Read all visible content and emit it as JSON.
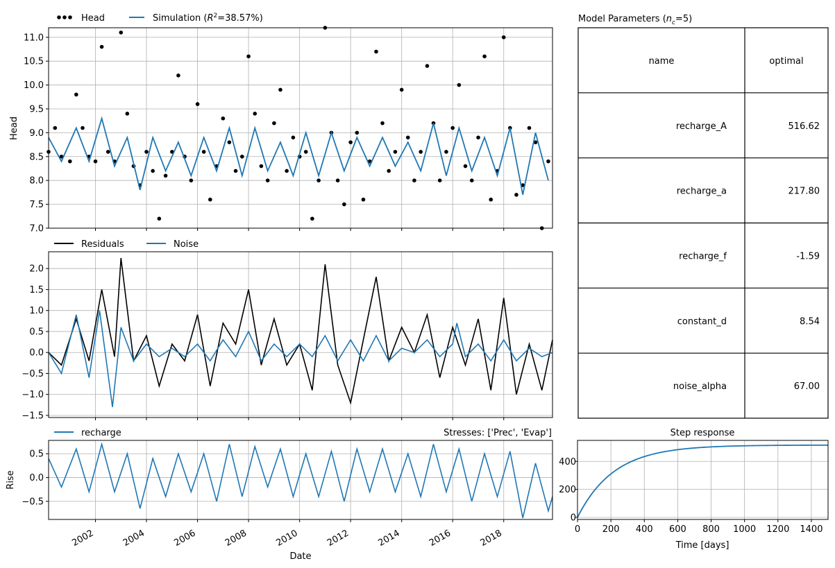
{
  "chart_data": [
    {
      "id": "head",
      "type": "line",
      "ylabel": "Head",
      "ylim": [
        7.0,
        11.2
      ],
      "yticks": [
        "7.0",
        "7.5",
        "8.0",
        "8.5",
        "9.0",
        "9.5",
        "10.0",
        "10.5",
        "11.0"
      ],
      "xlim": [
        "2000-03-01",
        "2019-11-30"
      ],
      "grid": true,
      "legend": {
        "placement": "top-left",
        "entries": [
          "Head",
          "Simulation (R²=38.57%)"
        ]
      },
      "series": [
        {
          "name": "Head",
          "kind": "scatter-dots",
          "color": "#000000",
          "x": [
            "2000-03-01",
            "2000-06-01",
            "2000-09-01",
            "2001-01-01",
            "2001-04-01",
            "2001-07-01",
            "2001-10-01",
            "2002-01-01",
            "2002-04-01",
            "2002-07-01",
            "2002-10-01",
            "2003-01-01",
            "2003-04-01",
            "2003-07-01",
            "2003-10-01",
            "2004-01-01",
            "2004-04-01",
            "2004-07-01",
            "2004-10-01",
            "2005-01-01",
            "2005-04-01",
            "2005-07-01",
            "2005-10-01",
            "2006-01-01",
            "2006-04-01",
            "2006-07-01",
            "2006-10-01",
            "2007-01-01",
            "2007-04-01",
            "2007-07-01",
            "2007-10-01",
            "2008-01-01",
            "2008-04-01",
            "2008-07-01",
            "2008-10-01",
            "2009-01-01",
            "2009-04-01",
            "2009-07-01",
            "2009-10-01",
            "2010-01-01",
            "2010-04-01",
            "2010-07-01",
            "2010-10-01",
            "2011-01-01",
            "2011-04-01",
            "2011-07-01",
            "2011-10-01",
            "2012-01-01",
            "2012-04-01",
            "2012-07-01",
            "2012-10-01",
            "2013-01-01",
            "2013-04-01",
            "2013-07-01",
            "2013-10-01",
            "2014-01-01",
            "2014-04-01",
            "2014-07-01",
            "2014-10-01",
            "2015-01-01",
            "2015-04-01",
            "2015-07-01",
            "2015-10-01",
            "2016-01-01",
            "2016-04-01",
            "2016-07-01",
            "2016-10-01",
            "2017-01-01",
            "2017-04-01",
            "2017-07-01",
            "2017-10-01",
            "2018-01-01",
            "2018-04-01",
            "2018-07-01",
            "2018-10-01",
            "2019-01-01",
            "2019-04-01",
            "2019-07-01",
            "2019-10-01"
          ],
          "y": [
            8.6,
            9.1,
            8.5,
            8.4,
            9.8,
            9.1,
            8.5,
            8.4,
            10.8,
            8.6,
            8.4,
            11.1,
            9.4,
            8.3,
            7.9,
            8.6,
            8.2,
            7.2,
            8.1,
            8.6,
            10.2,
            8.5,
            8.0,
            9.6,
            8.6,
            7.6,
            8.3,
            9.3,
            8.8,
            8.2,
            8.5,
            10.6,
            9.4,
            8.3,
            8.0,
            9.2,
            9.9,
            8.2,
            8.9,
            8.5,
            8.6,
            7.2,
            8.0,
            11.2,
            9.0,
            8.0,
            7.5,
            8.8,
            9.0,
            7.6,
            8.4,
            10.7,
            9.2,
            8.2,
            8.6,
            9.9,
            8.9,
            8.0,
            8.6,
            10.4,
            9.2,
            8.0,
            8.6,
            9.1,
            10.0,
            8.3,
            8.0,
            8.9,
            10.6,
            7.6,
            8.2,
            11.0,
            9.1,
            7.7,
            7.9,
            9.1,
            8.8,
            7.0,
            8.4
          ]
        },
        {
          "name": "Simulation (R²=38.57%)",
          "kind": "line",
          "color": "#1f77b4",
          "x": [
            "2000-03-01",
            "2000-09-01",
            "2001-04-01",
            "2001-10-01",
            "2002-04-01",
            "2002-10-01",
            "2003-04-01",
            "2003-10-01",
            "2004-04-01",
            "2004-10-01",
            "2005-04-01",
            "2005-10-01",
            "2006-04-01",
            "2006-10-01",
            "2007-04-01",
            "2007-10-01",
            "2008-04-01",
            "2008-10-01",
            "2009-04-01",
            "2009-10-01",
            "2010-04-01",
            "2010-10-01",
            "2011-04-01",
            "2011-10-01",
            "2012-04-01",
            "2012-10-01",
            "2013-04-01",
            "2013-10-01",
            "2014-04-01",
            "2014-10-01",
            "2015-04-01",
            "2015-10-01",
            "2016-04-01",
            "2016-10-01",
            "2017-04-01",
            "2017-10-01",
            "2018-04-01",
            "2018-10-01",
            "2019-04-01",
            "2019-10-01"
          ],
          "y": [
            8.9,
            8.4,
            9.1,
            8.4,
            9.3,
            8.3,
            8.9,
            7.8,
            8.9,
            8.2,
            8.8,
            8.1,
            8.9,
            8.2,
            9.1,
            8.1,
            9.1,
            8.2,
            8.8,
            8.1,
            9.0,
            8.1,
            9.0,
            8.2,
            8.9,
            8.3,
            8.9,
            8.3,
            8.8,
            8.2,
            9.2,
            8.1,
            9.1,
            8.2,
            8.9,
            8.1,
            9.1,
            7.7,
            9.0,
            8.0
          ]
        }
      ]
    },
    {
      "id": "residuals",
      "type": "line",
      "ylabel": "",
      "ylim": [
        -1.55,
        2.4
      ],
      "yticks": [
        "−1.5",
        "−1.0",
        "−0.5",
        "0.0",
        "0.5",
        "1.0",
        "1.5",
        "2.0"
      ],
      "xlim": [
        "2000-03-01",
        "2019-11-30"
      ],
      "grid": true,
      "legend": {
        "placement": "top-left",
        "entries": [
          "Residuals",
          "Noise"
        ]
      },
      "series": [
        {
          "name": "Residuals",
          "color": "#000000",
          "x": [
            "2000-03-01",
            "2000-09-01",
            "2001-04-01",
            "2001-10-01",
            "2002-04-01",
            "2002-10-01",
            "2003-01-01",
            "2003-07-01",
            "2004-01-01",
            "2004-07-01",
            "2005-01-01",
            "2005-07-01",
            "2006-01-01",
            "2006-07-01",
            "2007-01-01",
            "2007-07-01",
            "2008-01-01",
            "2008-07-01",
            "2009-01-01",
            "2009-07-01",
            "2010-01-01",
            "2010-07-01",
            "2011-01-01",
            "2011-07-01",
            "2012-01-01",
            "2012-07-01",
            "2013-01-01",
            "2013-07-01",
            "2014-01-01",
            "2014-07-01",
            "2015-01-01",
            "2015-07-01",
            "2016-01-01",
            "2016-07-01",
            "2017-01-01",
            "2017-07-01",
            "2018-01-01",
            "2018-07-01",
            "2019-01-01",
            "2019-07-01",
            "2019-11-30"
          ],
          "y": [
            0.0,
            -0.3,
            0.8,
            -0.2,
            1.5,
            -0.1,
            2.25,
            -0.2,
            0.4,
            -0.8,
            0.2,
            -0.2,
            0.9,
            -0.8,
            0.7,
            0.2,
            1.5,
            -0.3,
            0.8,
            -0.3,
            0.2,
            -0.9,
            2.1,
            -0.3,
            -1.2,
            0.3,
            1.8,
            -0.2,
            0.6,
            0.0,
            0.9,
            -0.6,
            0.6,
            -0.3,
            0.8,
            -0.9,
            1.3,
            -1.0,
            0.2,
            -0.9,
            0.3
          ]
        },
        {
          "name": "Noise",
          "color": "#1f77b4",
          "x": [
            "2000-03-01",
            "2000-09-01",
            "2001-04-01",
            "2001-10-01",
            "2002-03-01",
            "2002-09-01",
            "2003-01-01",
            "2003-07-01",
            "2004-01-01",
            "2004-07-01",
            "2005-01-01",
            "2005-07-01",
            "2006-01-01",
            "2006-07-01",
            "2007-01-01",
            "2007-07-01",
            "2008-01-01",
            "2008-07-01",
            "2009-01-01",
            "2009-07-01",
            "2010-01-01",
            "2010-07-01",
            "2011-01-01",
            "2011-07-01",
            "2012-01-01",
            "2012-07-01",
            "2013-01-01",
            "2013-07-01",
            "2014-01-01",
            "2014-07-01",
            "2015-01-01",
            "2015-07-01",
            "2016-01-01",
            "2016-03-01",
            "2016-07-01",
            "2017-01-01",
            "2017-07-01",
            "2018-01-01",
            "2018-07-01",
            "2019-01-01",
            "2019-07-01",
            "2019-11-30"
          ],
          "y": [
            0.0,
            -0.5,
            0.9,
            -0.6,
            1.0,
            -1.3,
            0.6,
            -0.2,
            0.2,
            -0.1,
            0.1,
            -0.1,
            0.2,
            -0.2,
            0.3,
            -0.1,
            0.5,
            -0.2,
            0.2,
            -0.1,
            0.2,
            -0.1,
            0.4,
            -0.2,
            0.3,
            -0.2,
            0.4,
            -0.2,
            0.1,
            0.0,
            0.3,
            -0.1,
            0.2,
            0.7,
            -0.1,
            0.2,
            -0.2,
            0.3,
            -0.2,
            0.1,
            -0.1,
            0.0
          ]
        }
      ]
    },
    {
      "id": "contribution",
      "type": "line",
      "ylabel": "Rise",
      "ylim": [
        -0.88,
        0.78
      ],
      "yticks": [
        "−0.5",
        "0.0",
        "0.5"
      ],
      "xlim": [
        "2000-03-01",
        "2019-11-30"
      ],
      "xticks": [
        "2002",
        "2004",
        "2006",
        "2008",
        "2010",
        "2012",
        "2014",
        "2016",
        "2018"
      ],
      "xlabel": "Date",
      "grid": true,
      "legend": {
        "placement": "top-left",
        "entries": [
          "recharge"
        ]
      },
      "title_right": "Stresses: ['Prec', 'Evap']",
      "series": [
        {
          "name": "recharge",
          "color": "#1f77b4",
          "x": [
            "2000-03-01",
            "2000-09-01",
            "2001-04-01",
            "2001-10-01",
            "2002-04-01",
            "2002-10-01",
            "2003-04-01",
            "2003-10-01",
            "2004-04-01",
            "2004-10-01",
            "2005-04-01",
            "2005-10-01",
            "2006-04-01",
            "2006-10-01",
            "2007-04-01",
            "2007-10-01",
            "2008-04-01",
            "2008-10-01",
            "2009-04-01",
            "2009-10-01",
            "2010-04-01",
            "2010-10-01",
            "2011-04-01",
            "2011-10-01",
            "2012-04-01",
            "2012-10-01",
            "2013-04-01",
            "2013-10-01",
            "2014-04-01",
            "2014-10-01",
            "2015-04-01",
            "2015-10-01",
            "2016-04-01",
            "2016-10-01",
            "2017-04-01",
            "2017-10-01",
            "2018-04-01",
            "2018-10-01",
            "2019-04-01",
            "2019-10-01",
            "2019-11-30"
          ],
          "y": [
            0.4,
            -0.2,
            0.6,
            -0.3,
            0.7,
            -0.3,
            0.5,
            -0.65,
            0.4,
            -0.4,
            0.5,
            -0.3,
            0.5,
            -0.5,
            0.7,
            -0.4,
            0.65,
            -0.2,
            0.6,
            -0.4,
            0.5,
            -0.4,
            0.55,
            -0.5,
            0.6,
            -0.3,
            0.6,
            -0.3,
            0.5,
            -0.4,
            0.7,
            -0.3,
            0.6,
            -0.5,
            0.5,
            -0.4,
            0.55,
            -0.85,
            0.3,
            -0.7,
            -0.4
          ]
        }
      ]
    },
    {
      "id": "step",
      "type": "line",
      "title": "Step response",
      "xlabel": "Time [days]",
      "xlim": [
        0,
        1500
      ],
      "ylim": [
        -15,
        550
      ],
      "xticks": [
        "0",
        "200",
        "400",
        "600",
        "800",
        "1000",
        "1200",
        "1400"
      ],
      "yticks": [
        "0",
        "200",
        "400"
      ],
      "grid": true,
      "series": [
        {
          "name": "",
          "color": "#1f77b4",
          "A": 516.62,
          "a": 217.8
        }
      ]
    }
  ],
  "param_table": {
    "title": "Model Parameters (n_c=5)",
    "title_prefix": "Model Parameters (",
    "title_n": "n",
    "title_sub": "c",
    "title_suffix": "=5)",
    "headers": [
      "name",
      "optimal"
    ],
    "rows": [
      [
        "recharge_A",
        "516.62"
      ],
      [
        "recharge_a",
        "217.80"
      ],
      [
        "recharge_f",
        "-1.59"
      ],
      [
        "constant_d",
        "8.54"
      ],
      [
        "noise_alpha",
        "67.00"
      ]
    ]
  },
  "legend_text": {
    "head": "Head",
    "sim_prefix": "Simulation (",
    "sim_R": "R",
    "sim_sup": "2",
    "sim_suffix": "=38.57%)",
    "residuals": "Residuals",
    "noise": "Noise",
    "recharge": "recharge"
  }
}
